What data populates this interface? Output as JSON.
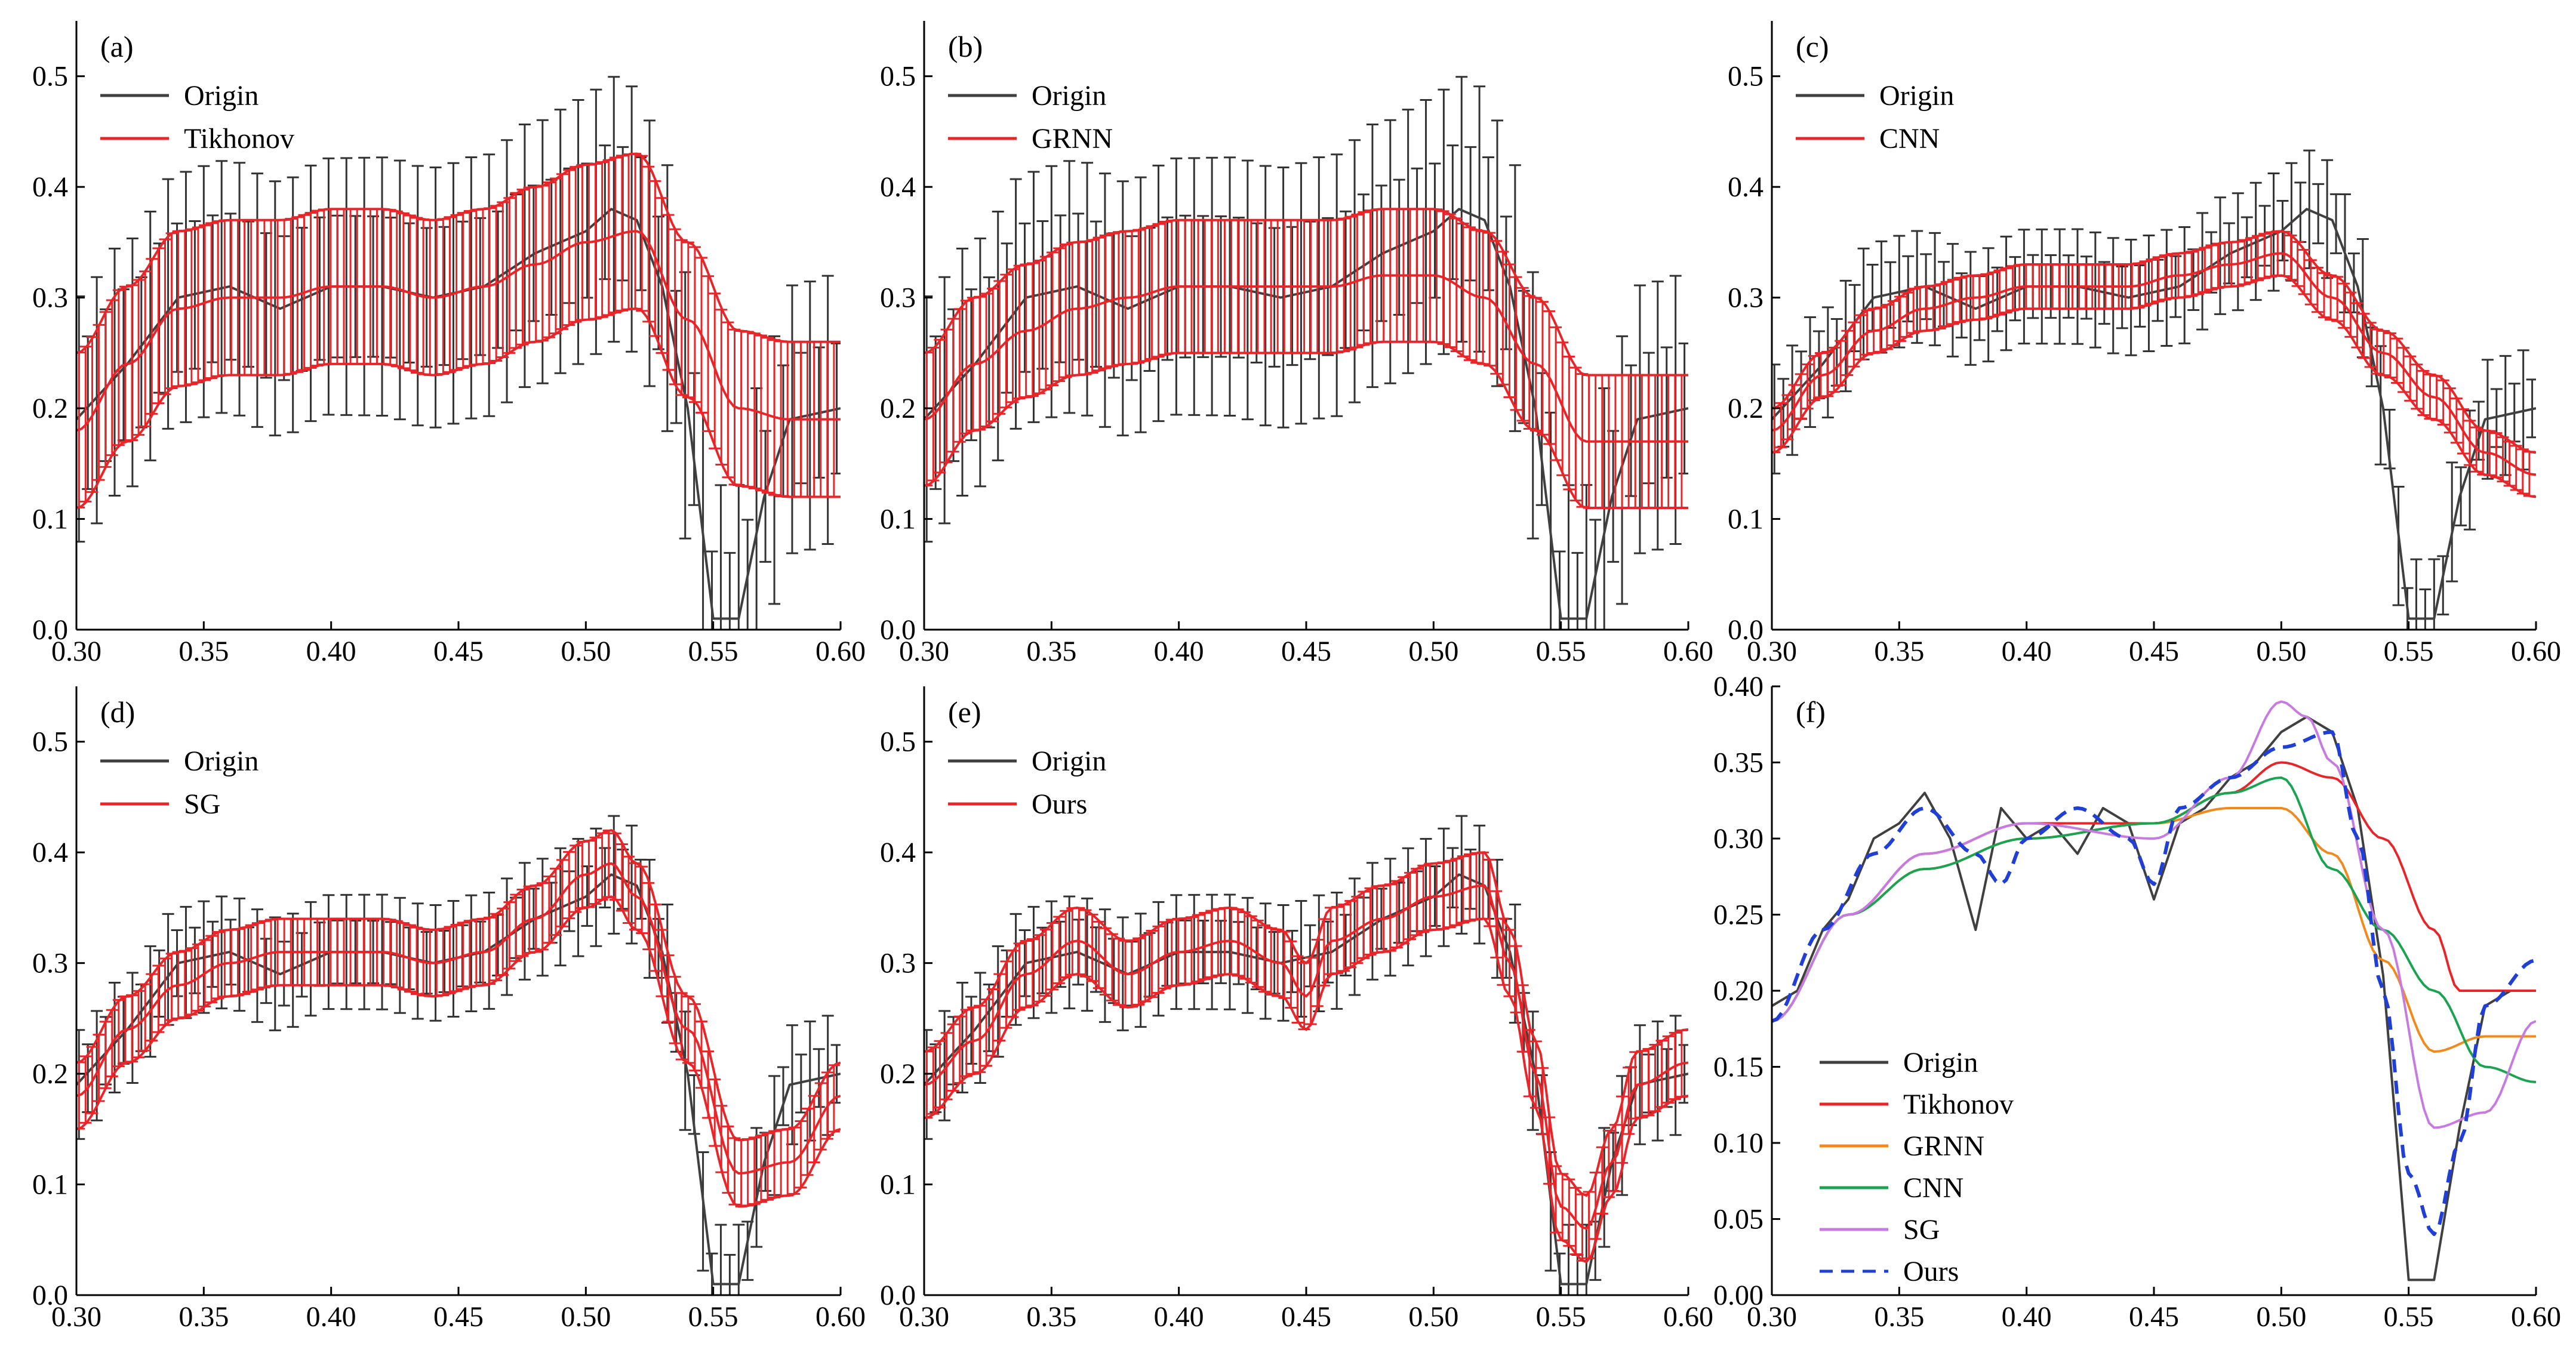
{
  "chart_data": [
    {
      "panel": "a",
      "type": "line",
      "label": "(a)",
      "xlim": [
        0.3,
        0.6
      ],
      "ylim": [
        0.0,
        0.55
      ],
      "xticks": [
        "0.30",
        "0.35",
        "0.40",
        "0.45",
        "0.50",
        "0.55",
        "0.60"
      ],
      "yticks": [
        "0.0",
        "0.1",
        "0.2",
        "0.3",
        "0.4",
        "0.5"
      ],
      "legend": [
        "Origin",
        "Tikhonov"
      ],
      "series": [
        {
          "name": "Origin",
          "color": "#404040",
          "x": [
            0.3,
            0.32,
            0.34,
            0.36,
            0.38,
            0.4,
            0.42,
            0.44,
            0.46,
            0.48,
            0.5,
            0.51,
            0.52,
            0.53,
            0.54,
            0.55,
            0.56,
            0.57,
            0.58,
            0.6
          ],
          "y": [
            0.19,
            0.24,
            0.3,
            0.31,
            0.29,
            0.31,
            0.31,
            0.3,
            0.31,
            0.34,
            0.36,
            0.38,
            0.37,
            0.31,
            0.2,
            0.01,
            0.01,
            0.12,
            0.19,
            0.2
          ],
          "err": 0.09
        },
        {
          "name": "Tikhonov",
          "color": "#e8262a",
          "x": [
            0.3,
            0.32,
            0.34,
            0.36,
            0.38,
            0.4,
            0.42,
            0.44,
            0.46,
            0.48,
            0.5,
            0.52,
            0.54,
            0.56,
            0.58,
            0.6
          ],
          "y": [
            0.18,
            0.24,
            0.29,
            0.3,
            0.3,
            0.31,
            0.31,
            0.3,
            0.31,
            0.33,
            0.35,
            0.36,
            0.28,
            0.2,
            0.19,
            0.19
          ],
          "err": 0.07
        }
      ]
    },
    {
      "panel": "b",
      "type": "line",
      "label": "(b)",
      "xlim": [
        0.3,
        0.6
      ],
      "ylim": [
        0.0,
        0.55
      ],
      "xticks": [
        "0.30",
        "0.35",
        "0.40",
        "0.45",
        "0.50",
        "0.55",
        "0.60"
      ],
      "yticks": [
        "0.0",
        "0.1",
        "0.2",
        "0.3",
        "0.4",
        "0.5"
      ],
      "legend": [
        "Origin",
        "GRNN"
      ],
      "series": [
        {
          "name": "Origin",
          "color": "#404040",
          "x": [
            0.3,
            0.32,
            0.34,
            0.36,
            0.38,
            0.4,
            0.42,
            0.44,
            0.46,
            0.48,
            0.5,
            0.51,
            0.52,
            0.53,
            0.54,
            0.55,
            0.56,
            0.57,
            0.58,
            0.6
          ],
          "y": [
            0.19,
            0.24,
            0.3,
            0.31,
            0.29,
            0.31,
            0.31,
            0.3,
            0.31,
            0.34,
            0.36,
            0.38,
            0.37,
            0.31,
            0.2,
            0.01,
            0.01,
            0.12,
            0.19,
            0.2
          ],
          "err": 0.09
        },
        {
          "name": "GRNN",
          "color": "#e8262a",
          "x": [
            0.3,
            0.32,
            0.34,
            0.36,
            0.38,
            0.4,
            0.42,
            0.44,
            0.46,
            0.48,
            0.5,
            0.52,
            0.54,
            0.56,
            0.58,
            0.6
          ],
          "y": [
            0.19,
            0.24,
            0.27,
            0.29,
            0.3,
            0.31,
            0.31,
            0.31,
            0.31,
            0.32,
            0.32,
            0.3,
            0.24,
            0.17,
            0.17,
            0.17
          ],
          "err": 0.06
        }
      ]
    },
    {
      "panel": "c",
      "type": "line",
      "label": "(c)",
      "xlim": [
        0.3,
        0.6
      ],
      "ylim": [
        0.0,
        0.55
      ],
      "xticks": [
        "0.30",
        "0.35",
        "0.40",
        "0.45",
        "0.50",
        "0.55",
        "0.60"
      ],
      "yticks": [
        "0.0",
        "0.1",
        "0.2",
        "0.3",
        "0.4",
        "0.5"
      ],
      "legend": [
        "Origin",
        "CNN"
      ],
      "series": [
        {
          "name": "Origin",
          "color": "#404040",
          "x": [
            0.3,
            0.32,
            0.34,
            0.36,
            0.38,
            0.4,
            0.42,
            0.44,
            0.46,
            0.48,
            0.5,
            0.51,
            0.52,
            0.53,
            0.54,
            0.55,
            0.56,
            0.57,
            0.58,
            0.6
          ],
          "y": [
            0.19,
            0.24,
            0.3,
            0.31,
            0.29,
            0.31,
            0.31,
            0.3,
            0.31,
            0.34,
            0.36,
            0.38,
            0.37,
            0.31,
            0.2,
            0.01,
            0.01,
            0.12,
            0.19,
            0.2
          ],
          "err": 0.04
        },
        {
          "name": "CNN",
          "color": "#e8262a",
          "x": [
            0.3,
            0.32,
            0.34,
            0.36,
            0.38,
            0.4,
            0.42,
            0.44,
            0.46,
            0.48,
            0.5,
            0.52,
            0.54,
            0.56,
            0.58,
            0.6
          ],
          "y": [
            0.18,
            0.23,
            0.27,
            0.29,
            0.3,
            0.31,
            0.31,
            0.31,
            0.32,
            0.33,
            0.34,
            0.3,
            0.25,
            0.21,
            0.16,
            0.14
          ],
          "err": 0.02
        }
      ]
    },
    {
      "panel": "d",
      "type": "line",
      "label": "(d)",
      "xlim": [
        0.3,
        0.6
      ],
      "ylim": [
        0.0,
        0.55
      ],
      "xticks": [
        "0.30",
        "0.35",
        "0.40",
        "0.45",
        "0.50",
        "0.55",
        "0.60"
      ],
      "yticks": [
        "0.0",
        "0.1",
        "0.2",
        "0.3",
        "0.4",
        "0.5"
      ],
      "legend": [
        "Origin",
        "SG"
      ],
      "series": [
        {
          "name": "Origin",
          "color": "#404040",
          "x": [
            0.3,
            0.32,
            0.34,
            0.36,
            0.38,
            0.4,
            0.42,
            0.44,
            0.46,
            0.48,
            0.5,
            0.51,
            0.52,
            0.53,
            0.54,
            0.55,
            0.56,
            0.57,
            0.58,
            0.6
          ],
          "y": [
            0.19,
            0.24,
            0.3,
            0.31,
            0.29,
            0.31,
            0.31,
            0.3,
            0.31,
            0.34,
            0.36,
            0.38,
            0.37,
            0.31,
            0.2,
            0.01,
            0.01,
            0.12,
            0.19,
            0.2
          ],
          "err": 0.04
        },
        {
          "name": "SG",
          "color": "#e8262a",
          "x": [
            0.3,
            0.32,
            0.34,
            0.36,
            0.38,
            0.4,
            0.42,
            0.44,
            0.46,
            0.48,
            0.5,
            0.51,
            0.52,
            0.54,
            0.56,
            0.58,
            0.6
          ],
          "y": [
            0.18,
            0.24,
            0.28,
            0.3,
            0.31,
            0.31,
            0.31,
            0.3,
            0.31,
            0.34,
            0.38,
            0.39,
            0.36,
            0.24,
            0.11,
            0.12,
            0.18
          ],
          "err": 0.03
        }
      ]
    },
    {
      "panel": "e",
      "type": "line",
      "label": "(e)",
      "xlim": [
        0.3,
        0.6
      ],
      "ylim": [
        0.0,
        0.55
      ],
      "xticks": [
        "0.30",
        "0.35",
        "0.40",
        "0.45",
        "0.50",
        "0.55",
        "0.60"
      ],
      "yticks": [
        "0.0",
        "0.1",
        "0.2",
        "0.3",
        "0.4",
        "0.5"
      ],
      "legend": [
        "Origin",
        "Ours"
      ],
      "series": [
        {
          "name": "Origin",
          "color": "#404040",
          "x": [
            0.3,
            0.32,
            0.34,
            0.36,
            0.38,
            0.4,
            0.42,
            0.44,
            0.46,
            0.48,
            0.5,
            0.51,
            0.52,
            0.53,
            0.54,
            0.55,
            0.56,
            0.57,
            0.58,
            0.6
          ],
          "y": [
            0.19,
            0.24,
            0.3,
            0.31,
            0.29,
            0.31,
            0.31,
            0.3,
            0.31,
            0.34,
            0.36,
            0.38,
            0.37,
            0.31,
            0.2,
            0.01,
            0.01,
            0.12,
            0.19,
            0.2
          ],
          "err": 0.04
        },
        {
          "name": "Ours",
          "color": "#e8262a",
          "x": [
            0.3,
            0.32,
            0.34,
            0.36,
            0.38,
            0.4,
            0.42,
            0.44,
            0.45,
            0.46,
            0.48,
            0.5,
            0.52,
            0.53,
            0.54,
            0.55,
            0.56,
            0.57,
            0.58,
            0.6
          ],
          "y": [
            0.19,
            0.23,
            0.29,
            0.32,
            0.29,
            0.31,
            0.32,
            0.3,
            0.27,
            0.32,
            0.34,
            0.36,
            0.37,
            0.3,
            0.2,
            0.08,
            0.06,
            0.12,
            0.19,
            0.21
          ],
          "err": 0.03
        }
      ]
    },
    {
      "panel": "f",
      "type": "line",
      "label": "(f)",
      "xlim": [
        0.3,
        0.6
      ],
      "ylim": [
        0.0,
        0.4
      ],
      "xticks": [
        "0.30",
        "0.35",
        "0.40",
        "0.45",
        "0.50",
        "0.55",
        "0.60"
      ],
      "yticks": [
        "0.00",
        "0.05",
        "0.10",
        "0.15",
        "0.20",
        "0.25",
        "0.30",
        "0.35",
        "0.40"
      ],
      "legend": [
        "Origin",
        "Tikhonov",
        "GRNN",
        "CNN",
        "SG",
        "Ours"
      ],
      "series": [
        {
          "name": "Origin",
          "color": "#404040",
          "x": [
            0.3,
            0.31,
            0.32,
            0.33,
            0.34,
            0.35,
            0.36,
            0.37,
            0.38,
            0.39,
            0.4,
            0.41,
            0.42,
            0.43,
            0.44,
            0.45,
            0.46,
            0.47,
            0.48,
            0.49,
            0.5,
            0.51,
            0.52,
            0.53,
            0.54,
            0.55,
            0.56,
            0.57,
            0.58,
            0.59,
            0.6
          ],
          "y": [
            0.19,
            0.2,
            0.24,
            0.26,
            0.3,
            0.31,
            0.33,
            0.3,
            0.24,
            0.32,
            0.3,
            0.31,
            0.29,
            0.32,
            0.31,
            0.26,
            0.31,
            0.32,
            0.34,
            0.35,
            0.37,
            0.38,
            0.37,
            0.32,
            0.21,
            0.01,
            0.01,
            0.11,
            0.19,
            0.2,
            0.2
          ]
        },
        {
          "name": "Tikhonov",
          "color": "#e8262a",
          "x": [
            0.3,
            0.33,
            0.36,
            0.4,
            0.45,
            0.48,
            0.5,
            0.52,
            0.54,
            0.56,
            0.57,
            0.58,
            0.6
          ],
          "y": [
            0.18,
            0.25,
            0.29,
            0.31,
            0.31,
            0.33,
            0.35,
            0.34,
            0.3,
            0.24,
            0.2,
            0.2,
            0.2
          ]
        },
        {
          "name": "GRNN",
          "color": "#f08a1c",
          "x": [
            0.3,
            0.33,
            0.36,
            0.4,
            0.45,
            0.48,
            0.5,
            0.52,
            0.54,
            0.56,
            0.58,
            0.6
          ],
          "y": [
            0.18,
            0.25,
            0.28,
            0.3,
            0.31,
            0.32,
            0.32,
            0.29,
            0.22,
            0.16,
            0.17,
            0.17
          ]
        },
        {
          "name": "CNN",
          "color": "#1aa350",
          "x": [
            0.3,
            0.33,
            0.36,
            0.4,
            0.45,
            0.48,
            0.5,
            0.52,
            0.54,
            0.56,
            0.58,
            0.6
          ],
          "y": [
            0.18,
            0.25,
            0.28,
            0.3,
            0.31,
            0.33,
            0.34,
            0.28,
            0.24,
            0.2,
            0.15,
            0.14
          ]
        },
        {
          "name": "SG",
          "color": "#c77ae0",
          "x": [
            0.3,
            0.33,
            0.36,
            0.4,
            0.45,
            0.48,
            0.5,
            0.51,
            0.52,
            0.54,
            0.56,
            0.58,
            0.6
          ],
          "y": [
            0.18,
            0.25,
            0.29,
            0.31,
            0.3,
            0.34,
            0.39,
            0.38,
            0.35,
            0.24,
            0.11,
            0.12,
            0.18
          ]
        },
        {
          "name": "Ours",
          "color": "#1f3fd6",
          "dashed": true,
          "x": [
            0.3,
            0.32,
            0.34,
            0.36,
            0.38,
            0.39,
            0.4,
            0.42,
            0.44,
            0.45,
            0.46,
            0.48,
            0.5,
            0.52,
            0.53,
            0.54,
            0.55,
            0.56,
            0.57,
            0.58,
            0.6
          ],
          "y": [
            0.18,
            0.24,
            0.29,
            0.32,
            0.29,
            0.27,
            0.3,
            0.32,
            0.3,
            0.27,
            0.32,
            0.34,
            0.36,
            0.37,
            0.3,
            0.2,
            0.08,
            0.04,
            0.1,
            0.19,
            0.22
          ]
        }
      ]
    }
  ]
}
